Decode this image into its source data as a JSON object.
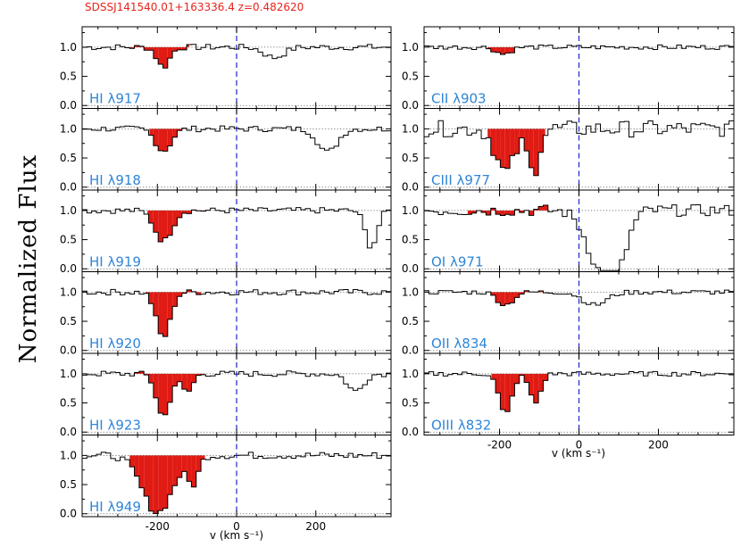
{
  "figure": {
    "title": "SDSSJ141540.01+163336.4  z=0.482620",
    "ylabel": "Normalized Flux",
    "xlabel": "v (km s⁻¹)",
    "colors": {
      "title": "#e8231b",
      "label": "#2f86d8",
      "absorption_fill": "#e01b14",
      "zero_line": "#2222cc",
      "spectrum": "#000000"
    }
  },
  "chart_data": {
    "type": "line",
    "xlim": [
      -390,
      390
    ],
    "ylim": [
      -0.05,
      1.35
    ],
    "xticks": [
      -200,
      0,
      200
    ],
    "yticks": [
      0.0,
      0.5,
      1.0
    ],
    "ytick_labels": [
      "0.0",
      "0.5",
      "1.0"
    ],
    "continuum_level": 1.0,
    "zero_velocity": 0,
    "velocity_step_kms": 12,
    "columns": [
      {
        "panels": [
          {
            "label": "HI λ917",
            "fill_range": [
              -270,
              -120
            ],
            "y_offset": 0.0,
            "features": [
              [
                -185,
                0.34,
                16
              ],
              [
                95,
                0.18,
                25
              ]
            ],
            "noise": 0.05
          },
          {
            "label": "HI λ918",
            "fill_range": [
              -220,
              -130
            ],
            "y_offset": 0.0,
            "features": [
              [
                -185,
                0.38,
                20
              ],
              [
                230,
                0.4,
                24
              ]
            ],
            "noise": 0.05
          },
          {
            "label": "HI λ919",
            "fill_range": [
              -225,
              -75
            ],
            "y_offset": 0.0,
            "features": [
              [
                -185,
                0.52,
                22
              ],
              [
                340,
                0.62,
                15
              ]
            ],
            "noise": 0.05
          },
          {
            "label": "HI λ920",
            "fill_range": [
              -230,
              -90
            ],
            "y_offset": 0.0,
            "features": [
              [
                -185,
                0.78,
                18
              ]
            ],
            "noise": 0.05
          },
          {
            "label": "HI λ923",
            "fill_range": [
              -260,
              -80
            ],
            "y_offset": 0.0,
            "features": [
              [
                -185,
                0.74,
                17
              ],
              [
                -125,
                0.32,
                14
              ],
              [
                300,
                0.3,
                20
              ]
            ],
            "noise": 0.05
          },
          {
            "label": "HI λ949",
            "fill_range": [
              -270,
              -80
            ],
            "y_offset": 0.0,
            "features": [
              [
                -200,
                0.98,
                38
              ],
              [
                -110,
                0.45,
                14
              ]
            ],
            "noise": 0.06
          }
        ]
      },
      {
        "panels": [
          {
            "label": "CII λ903",
            "fill_range": [
              -230,
              -150
            ],
            "y_offset": 0.0,
            "features": [
              [
                -190,
                0.12,
                18
              ]
            ],
            "noise": 0.04
          },
          {
            "label": "CIII λ977",
            "fill_range": [
              -230,
              -85
            ],
            "y_offset": 0.0,
            "features": [
              [
                -185,
                0.75,
                24
              ],
              [
                -115,
                0.75,
                14
              ]
            ],
            "noise": 0.14
          },
          {
            "label": "OI λ971",
            "fill_range": [
              -280,
              -75
            ],
            "y_offset": 0.0,
            "features": [
              [
                55,
                0.95,
                35
              ],
              [
                100,
                0.65,
                25
              ]
            ],
            "noise": 0.1
          },
          {
            "label": "OII λ834",
            "fill_range": [
              -230,
              -90
            ],
            "y_offset": 0.0,
            "features": [
              [
                -185,
                0.22,
                20
              ],
              [
                40,
                0.22,
                30
              ]
            ],
            "noise": 0.04
          },
          {
            "label": "OIII λ832",
            "fill_range": [
              -220,
              -75
            ],
            "y_offset": 0.0,
            "features": [
              [
                -185,
                0.7,
                16
              ],
              [
                -110,
                0.5,
                14
              ]
            ],
            "noise": 0.04
          }
        ]
      }
    ]
  }
}
